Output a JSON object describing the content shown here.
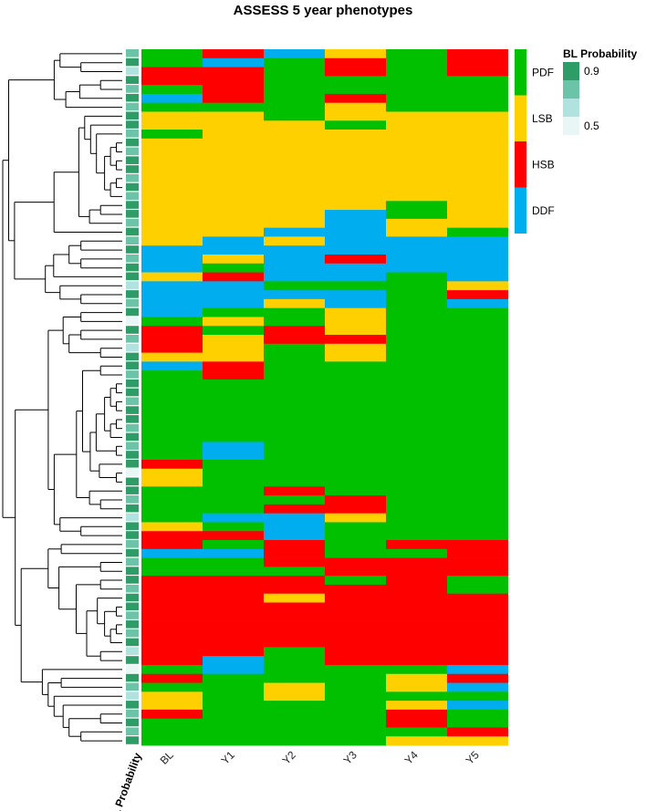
{
  "chart_data": {
    "type": "heatmap",
    "title": "ASSESS 5 year phenotypes",
    "columns": [
      "BL",
      "Y1",
      "Y2",
      "Y3",
      "Y4",
      "Y5"
    ],
    "annotation_label": "BL Probability",
    "categories": [
      {
        "code": "P",
        "name": "PDF",
        "color": "#00C000"
      },
      {
        "code": "L",
        "name": "LSB",
        "color": "#FFD000"
      },
      {
        "code": "H",
        "name": "HSB",
        "color": "#FF0000"
      },
      {
        "code": "D",
        "name": "DDF",
        "color": "#00AEEF"
      }
    ],
    "probability_legend": {
      "title": "BL Probability",
      "ticks": [
        "0.9",
        "0.5"
      ],
      "colors": [
        "#2E9C66",
        "#6CC4A8",
        "#B0E2E0",
        "#E8F6F6"
      ]
    },
    "rows": [
      "PHDLPH",
      "PDPHPH",
      "HHPHPH",
      "HHPPPP",
      "PHPPPP",
      "DHPHPP",
      "PPPLPP",
      "LLPLLL",
      "LLLPLL",
      "PLLLLL",
      "LLLLLL",
      "LLLLLL",
      "LLLLLL",
      "LLLLLL",
      "LLLLLL",
      "LLLLLL",
      "LLLLLL",
      "LLLLPL",
      "LLLDPL",
      "LLLDLL",
      "LLDDLP",
      "LDLDDD",
      "DDDDDD",
      "DLDHDD",
      "DPDDDD",
      "LHDDPD",
      "DDPPPL",
      "DDDDPH",
      "DDLDPD",
      "DPPLPP",
      "PLPLPP",
      "HPHLPP",
      "HLHHPP",
      "HLPLPP",
      "LLPLPP",
      "DHPPPP",
      "PHPPPP",
      "PPPPPP",
      "PPPPPP",
      "PPPPPP",
      "PPPPPP",
      "PPPPPP",
      "PPPPPP",
      "PPPPPP",
      "PDPPPP",
      "PDPPPP",
      "HPPPPP",
      "LPPPPP",
      "LPPPPP",
      "PPHPPP",
      "PPPHPP",
      "PPHHPP",
      "PDDLPP",
      "LPDPPP",
      "HHDPPP",
      "HPHPHH",
      "DDHPPH",
      "PPHHHH",
      "PPPHHH",
      "HHHPHP",
      "HHHHHP",
      "HHLHHH",
      "HHHHHH",
      "HHHHHH",
      "HHHHHH",
      "HHHHHH",
      "HHHHHH",
      "HHPHHH",
      "HDPHHH",
      "PDPPPD",
      "HPPPLH",
      "PPLPLD",
      "LPLPPP",
      "LPPPLD",
      "HPPPHP",
      "PPPPHP",
      "PPPPPH",
      "PPPPLL"
    ],
    "row_probabilities": [
      0.8,
      0.9,
      0.6,
      0.9,
      0.8,
      0.9,
      0.7,
      0.9,
      0.9,
      0.8,
      0.9,
      0.8,
      0.9,
      0.9,
      0.7,
      0.9,
      0.8,
      0.9,
      0.9,
      0.8,
      0.9,
      0.7,
      0.9,
      0.8,
      0.9,
      0.9,
      0.6,
      0.9,
      0.8,
      0.9,
      0.5,
      0.9,
      0.8,
      0.6,
      0.9,
      0.9,
      0.7,
      0.9,
      0.9,
      0.8,
      0.9,
      0.9,
      0.7,
      0.9,
      0.8,
      0.9,
      0.9,
      0.5,
      0.9,
      0.9,
      0.8,
      0.9,
      0.6,
      0.9,
      0.9,
      0.8,
      0.9,
      0.7,
      0.9,
      0.9,
      0.8,
      0.9,
      0.9,
      0.7,
      0.9,
      0.8,
      0.9,
      0.6,
      0.9,
      0.5,
      0.9,
      0.8,
      0.6,
      0.9,
      0.7,
      0.9,
      0.8,
      0.9
    ]
  }
}
